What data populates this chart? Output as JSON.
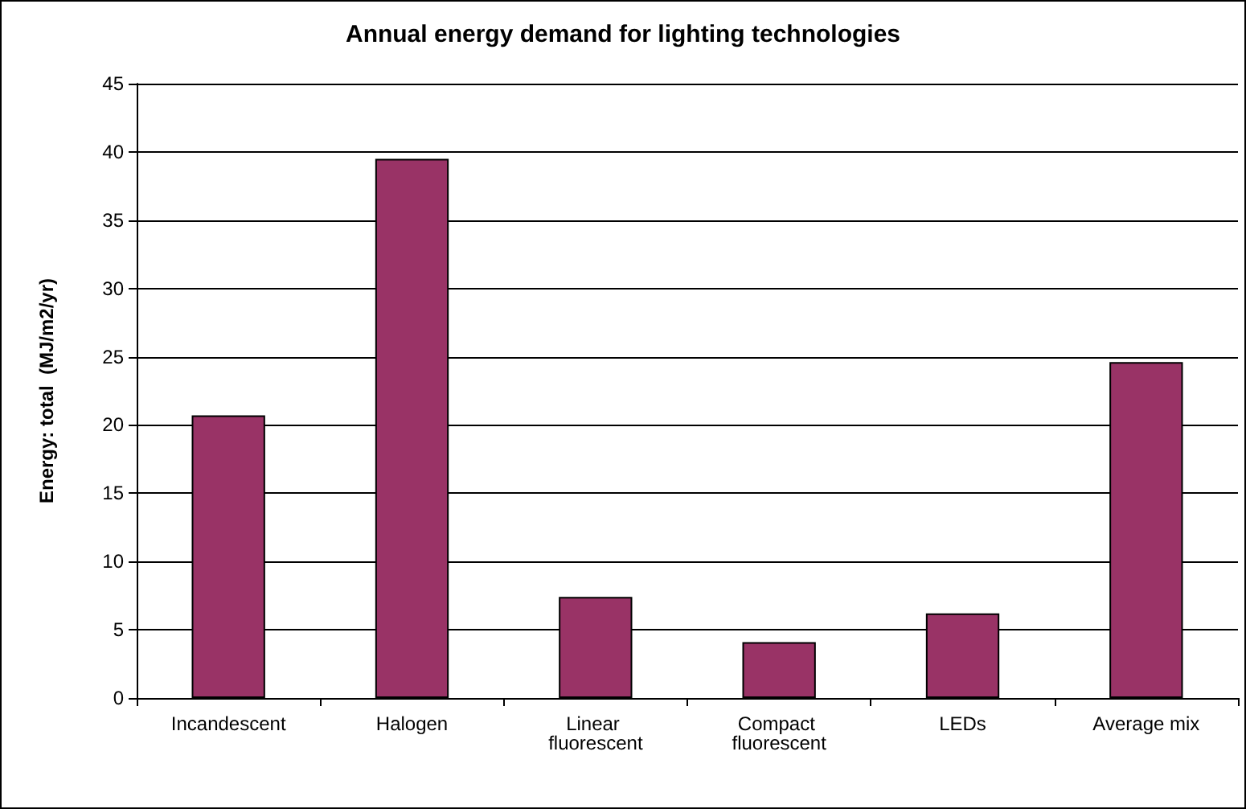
{
  "chart_data": {
    "type": "bar",
    "title": "Annual energy demand for lighting technologies",
    "ylabel": "Energy: total  (MJ/m2/yr)",
    "categories": [
      "Incandescent",
      "Halogen",
      "Linear fluorescent",
      "Compact fluorescent",
      "LEDs",
      "Average mix"
    ],
    "values": [
      20.7,
      39.5,
      7.4,
      4.1,
      6.2,
      24.6
    ],
    "color": "#993366",
    "ylim": [
      0,
      45
    ],
    "yticks": [
      0,
      5,
      10,
      15,
      20,
      25,
      30,
      35,
      40,
      45
    ],
    "grid": "y"
  }
}
